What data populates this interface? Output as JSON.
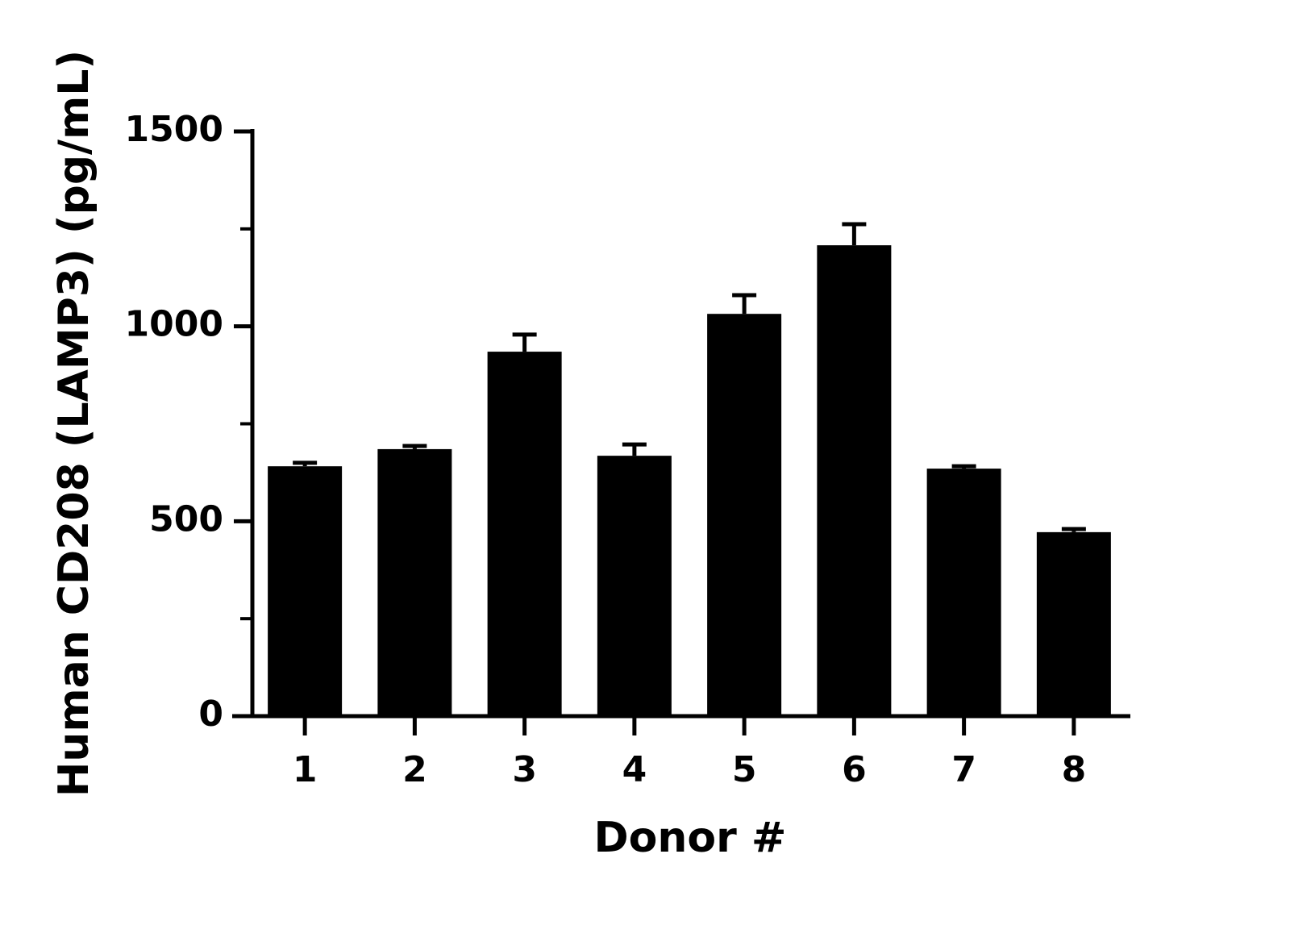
{
  "chart_data": {
    "type": "bar",
    "categories": [
      "1",
      "2",
      "3",
      "4",
      "5",
      "6",
      "7",
      "8"
    ],
    "values": [
      641,
      685,
      935,
      668,
      1032,
      1208,
      635,
      472
    ],
    "errors": [
      9,
      8,
      44,
      29,
      48,
      54,
      6,
      8
    ],
    "color": "#000000",
    "x_label": "Donor #",
    "y_label": "Human CD208 (LAMP3) (pg/mL)",
    "ylim": [
      0,
      1500
    ],
    "yticks": [
      0,
      500,
      1000,
      1500
    ],
    "yminor_ticks": [
      250,
      750,
      1250
    ],
    "grid": false
  }
}
